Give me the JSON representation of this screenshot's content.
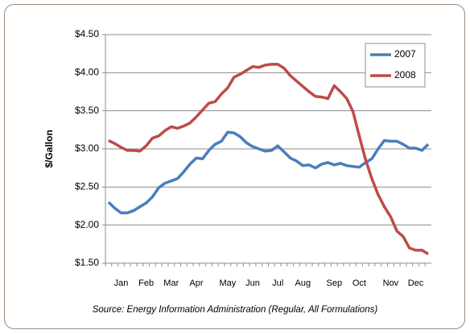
{
  "chart_data": {
    "type": "line",
    "y_label": "$/Gallon",
    "source": "Source: Energy Information Administration (Regular, All Formulations)",
    "categories": [
      null,
      null,
      "Jan",
      null,
      null,
      null,
      "Feb",
      null,
      null,
      null,
      "Mar",
      null,
      null,
      null,
      "Apr",
      null,
      null,
      null,
      null,
      "May",
      null,
      null,
      null,
      "Jun",
      null,
      null,
      null,
      "Jul",
      null,
      null,
      null,
      "Aug",
      null,
      null,
      null,
      null,
      "Sep",
      null,
      null,
      null,
      "Oct",
      null,
      null,
      null,
      null,
      "Nov",
      null,
      null,
      null,
      "Dec",
      null,
      null
    ],
    "series": [
      {
        "name": "2007",
        "color": "#4a7ebb",
        "values": [
          2.3,
          2.22,
          2.16,
          2.16,
          2.19,
          2.24,
          2.29,
          2.37,
          2.49,
          2.55,
          2.58,
          2.61,
          2.7,
          2.8,
          2.88,
          2.87,
          2.98,
          3.06,
          3.1,
          3.22,
          3.21,
          3.16,
          3.08,
          3.03,
          3.0,
          2.97,
          2.98,
          3.04,
          2.96,
          2.88,
          2.84,
          2.78,
          2.79,
          2.75,
          2.8,
          2.82,
          2.79,
          2.81,
          2.78,
          2.77,
          2.76,
          2.82,
          2.87,
          3.0,
          3.11,
          3.1,
          3.1,
          3.06,
          3.01,
          3.01,
          2.98,
          3.06
        ]
      },
      {
        "name": "2008",
        "color": "#be4b48",
        "values": [
          3.11,
          3.07,
          3.02,
          2.98,
          2.98,
          2.97,
          3.04,
          3.14,
          3.17,
          3.24,
          3.29,
          3.27,
          3.3,
          3.34,
          3.42,
          3.51,
          3.6,
          3.62,
          3.72,
          3.8,
          3.94,
          3.98,
          4.03,
          4.08,
          4.07,
          4.1,
          4.11,
          4.11,
          4.06,
          3.96,
          3.89,
          3.82,
          3.75,
          3.69,
          3.68,
          3.66,
          3.83,
          3.75,
          3.66,
          3.49,
          3.17,
          2.86,
          2.61,
          2.4,
          2.24,
          2.11,
          1.92,
          1.85,
          1.7,
          1.67,
          1.67,
          1.62
        ]
      }
    ],
    "ylim": [
      1.5,
      4.5
    ],
    "yticks": [
      {
        "value": 1.5,
        "label": "$1.50"
      },
      {
        "value": 2,
        "label": "$2.00"
      },
      {
        "value": 2.5,
        "label": "$2.50"
      },
      {
        "value": 3,
        "label": "$3.00"
      },
      {
        "value": 3.5,
        "label": "$3.50"
      },
      {
        "value": 4,
        "label": "$4.00"
      },
      {
        "value": 4.5,
        "label": "$4.50"
      }
    ],
    "grid": true,
    "legend": "top-right"
  }
}
